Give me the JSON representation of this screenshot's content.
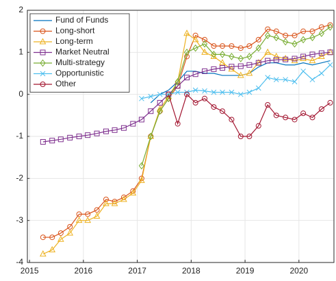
{
  "chart_data": {
    "type": "line",
    "x": [
      2015.25,
      2015.42,
      2015.58,
      2015.75,
      2015.92,
      2016.08,
      2016.25,
      2016.42,
      2016.58,
      2016.75,
      2016.92,
      2017.08,
      2017.25,
      2017.42,
      2017.58,
      2017.75,
      2017.92,
      2018.08,
      2018.25,
      2018.42,
      2018.58,
      2018.75,
      2018.92,
      2019.08,
      2019.25,
      2019.42,
      2019.58,
      2019.75,
      2019.92,
      2020.08,
      2020.25,
      2020.42,
      2020.58
    ],
    "xlim": [
      2014.96,
      2020.65
    ],
    "xticks": [
      2015,
      2016,
      2017,
      2018,
      2019,
      2020
    ],
    "ylim": [
      -4,
      2
    ],
    "yticks": [
      -4,
      -3,
      -2,
      -1,
      0,
      1,
      2
    ],
    "grid": true,
    "legend": "upper left",
    "series": [
      {
        "name": "Fund of Funds",
        "color": "#0072BD",
        "values": [
          null,
          null,
          null,
          null,
          null,
          null,
          null,
          null,
          null,
          null,
          null,
          null,
          -0.2,
          0.0,
          0.1,
          0.3,
          0.55,
          0.55,
          0.5,
          0.5,
          0.45,
          0.45,
          0.45,
          0.5,
          0.65,
          0.75,
          0.75,
          0.7,
          0.7,
          0.75,
          0.7,
          0.75,
          0.8
        ]
      },
      {
        "name": "Long-short",
        "color": "#D95319",
        "marker": "o",
        "values": [
          -3.4,
          -3.4,
          -3.3,
          -3.15,
          -2.85,
          -2.85,
          -2.75,
          -2.5,
          -2.55,
          -2.45,
          -2.3,
          -2.0,
          -1.0,
          -0.4,
          -0.1,
          0.2,
          0.9,
          1.4,
          1.3,
          1.15,
          1.15,
          1.15,
          1.1,
          1.15,
          1.3,
          1.55,
          1.5,
          1.4,
          1.4,
          1.5,
          1.5,
          1.6,
          1.65
        ]
      },
      {
        "name": "Long-term",
        "color": "#EDB120",
        "marker": "^",
        "values": [
          -3.8,
          -3.7,
          -3.45,
          -3.3,
          -3.0,
          -3.0,
          -2.9,
          -2.6,
          -2.6,
          -2.5,
          -2.35,
          -2.05,
          -1.0,
          -0.35,
          -0.05,
          0.3,
          1.45,
          1.3,
          1.0,
          0.9,
          0.75,
          0.6,
          0.45,
          0.5,
          0.75,
          1.0,
          0.9,
          0.85,
          0.8,
          0.85,
          0.8,
          0.9,
          1.0
        ]
      },
      {
        "name": "Market Neutral",
        "color": "#7E2F8E",
        "marker": "s",
        "values": [
          -1.13,
          -1.1,
          -1.07,
          -1.03,
          -1.0,
          -0.97,
          -0.93,
          -0.88,
          -0.85,
          -0.8,
          -0.7,
          -0.6,
          -0.4,
          -0.2,
          0.0,
          0.2,
          0.4,
          0.48,
          0.55,
          0.6,
          0.63,
          0.66,
          0.67,
          0.7,
          0.75,
          0.8,
          0.82,
          0.83,
          0.85,
          0.9,
          0.95,
          0.98,
          1.0
        ]
      },
      {
        "name": "Multi-strategy",
        "color": "#77AC30",
        "marker": "d",
        "values": [
          null,
          null,
          null,
          null,
          null,
          null,
          null,
          null,
          null,
          null,
          null,
          -1.7,
          -1.0,
          -0.4,
          -0.1,
          0.3,
          1.0,
          1.1,
          1.2,
          0.95,
          0.95,
          0.9,
          0.85,
          0.9,
          1.1,
          1.4,
          1.35,
          1.25,
          1.2,
          1.3,
          1.35,
          1.45,
          1.6
        ]
      },
      {
        "name": "Opportunistic",
        "color": "#4DBEEE",
        "marker": "x",
        "values": [
          null,
          null,
          null,
          null,
          null,
          null,
          null,
          null,
          null,
          null,
          null,
          -0.1,
          -0.05,
          0.0,
          0.0,
          0.05,
          0.05,
          0.1,
          0.08,
          0.05,
          0.05,
          0.05,
          0.0,
          0.05,
          0.15,
          0.4,
          0.35,
          0.35,
          0.3,
          0.55,
          0.35,
          0.5,
          0.7
        ]
      },
      {
        "name": "Other",
        "color": "#A2142F",
        "marker": "o",
        "values": [
          null,
          null,
          null,
          null,
          null,
          null,
          null,
          null,
          null,
          null,
          null,
          null,
          null,
          null,
          0.0,
          -0.7,
          0.0,
          -0.2,
          -0.1,
          -0.3,
          -0.4,
          -0.6,
          -1.0,
          -1.0,
          -0.75,
          -0.25,
          -0.5,
          -0.55,
          -0.6,
          -0.45,
          -0.55,
          -0.35,
          -0.2
        ]
      }
    ]
  }
}
